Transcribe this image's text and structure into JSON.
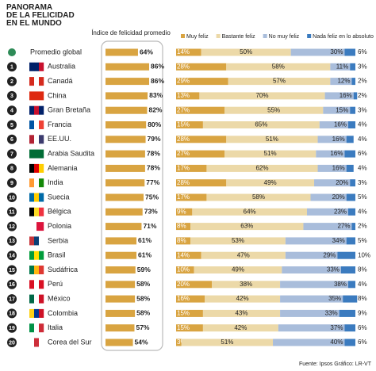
{
  "title": "PANORAMA DE LA FELICIDAD EN EL MUNDO",
  "source": "Fuente: Ipsos   Gráfico: LR-VT",
  "chart_data": [
    {
      "type": "bar",
      "title": "Índice de felicidad promedio",
      "color": "#d9a441",
      "xlim": [
        0,
        100
      ],
      "ranks": [
        null,
        1,
        2,
        3,
        4,
        5,
        6,
        7,
        8,
        9,
        10,
        11,
        12,
        13,
        14,
        15,
        16,
        17,
        18,
        19,
        20
      ],
      "categories": [
        "Promedio global",
        "Australia",
        "Canadá",
        "China",
        "Gran Bretaña",
        "Francia",
        "EE.UU.",
        "Arabia Saudita",
        "Alemania",
        "India",
        "Suecia",
        "Bélgica",
        "Polonia",
        "Serbia",
        "Brasil",
        "Sudáfrica",
        "Perú",
        "México",
        "Colombia",
        "Italia",
        "Corea del Sur"
      ],
      "values": [
        64,
        86,
        86,
        83,
        82,
        80,
        79,
        78,
        78,
        77,
        75,
        73,
        71,
        61,
        61,
        59,
        58,
        58,
        58,
        57,
        54
      ],
      "value_labels": [
        "64%",
        "86%",
        "86%",
        "83%",
        "82%",
        "80%",
        "79%",
        "78%",
        "78%",
        "77%",
        "75%",
        "73%",
        "71%",
        "61%",
        "61%",
        "59%",
        "58%",
        "58%",
        "58%",
        "57%",
        "54%"
      ]
    },
    {
      "type": "stacked-bar",
      "xlim": [
        0,
        100
      ],
      "series": [
        {
          "name": "Muy feliz",
          "color": "#d9a441",
          "values": [
            14,
            28,
            29,
            13,
            27,
            15,
            28,
            27,
            17,
            28,
            17,
            9,
            8,
            8,
            14,
            10,
            20,
            16,
            15,
            15,
            3
          ],
          "value_labels": [
            "14%",
            "28%",
            "29%",
            "13%",
            "27%",
            "15%",
            "28%",
            "27%",
            "17%",
            "28%",
            "17%",
            "9%",
            "8%",
            "8%",
            "14%",
            "10%",
            "20%",
            "16%",
            "15%",
            "15%",
            "3%"
          ]
        },
        {
          "name": "Bastante feliz",
          "color": "#ecd9a8",
          "values": [
            50,
            58,
            57,
            70,
            55,
            65,
            51,
            51,
            62,
            49,
            58,
            64,
            63,
            53,
            47,
            49,
            38,
            42,
            43,
            42,
            51
          ],
          "value_labels": [
            "50%",
            "58%",
            "57%",
            "70%",
            "55%",
            "65%",
            "51%",
            "51%",
            "62%",
            "49%",
            "58%",
            "64%",
            "63%",
            "53%",
            "47%",
            "49%",
            "38%",
            "42%",
            "43%",
            "42%",
            "51%"
          ]
        },
        {
          "name": "No muy feliz",
          "color": "#a9bddb",
          "values": [
            30,
            11,
            12,
            16,
            15,
            16,
            16,
            16,
            16,
            20,
            20,
            23,
            27,
            34,
            29,
            33,
            38,
            35,
            33,
            37,
            40
          ],
          "value_labels": [
            "30%",
            "11%",
            "12%",
            "16%",
            "15%",
            "16%",
            "16%",
            "16%",
            "16%",
            "20%",
            "20%",
            "23%",
            "27%",
            "34%",
            "29%",
            "33%",
            "38%",
            "35%",
            "33%",
            "37%",
            "40%"
          ]
        },
        {
          "name": "Nada feliz en lo absoluto",
          "color": "#3b7bbf",
          "values": [
            6,
            3,
            2,
            2,
            3,
            4,
            4,
            6,
            4,
            3,
            5,
            4,
            2,
            5,
            10,
            8,
            4,
            8,
            9,
            6,
            6
          ],
          "value_labels": [
            "6%",
            "3%",
            "2%",
            "2%",
            "3%",
            "4%",
            "4%",
            "6%",
            "4%",
            "3%",
            "5%",
            "4%",
            "2%",
            "5%",
            "10%",
            "8%",
            "4%",
            "8%",
            "9%",
            "6%",
            "6%"
          ]
        }
      ]
    }
  ]
}
